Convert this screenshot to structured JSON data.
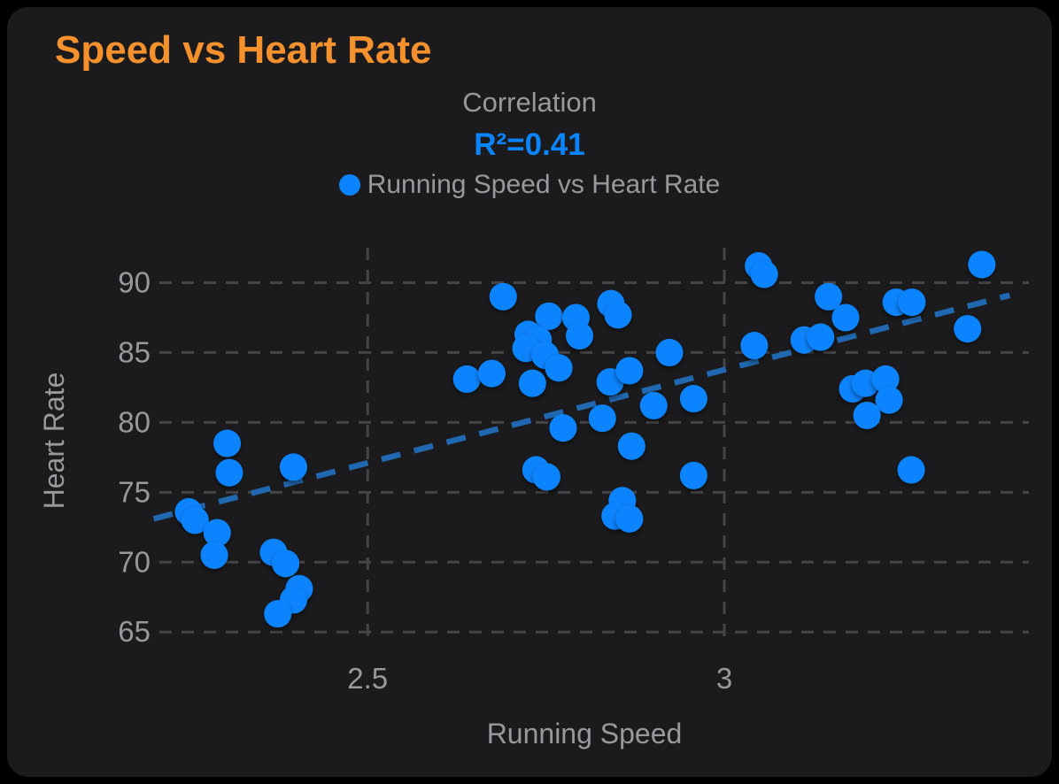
{
  "window": {
    "background": "#000000",
    "card_background": "#1b1b1d"
  },
  "header": {
    "title": "Speed vs Heart Rate",
    "subtitle": "Correlation",
    "r_squared": "R²=0.41",
    "legend": {
      "label": "Running Speed vs Heart Rate",
      "marker": "circle",
      "marker_color": "#0a84ff"
    }
  },
  "colors": {
    "title": "#f5912d",
    "subtitle_text": "#98989d",
    "r_squared_text": "#0a84ff",
    "legend_text": "#98989d",
    "dot": "#0a84ff",
    "trendline": "#2068b0",
    "grid": "#454548",
    "tick_text": "#98989d"
  },
  "chart_data": {
    "type": "scatter",
    "title": "Correlation",
    "annotation": "R²=0.41",
    "xlabel": "Running Speed",
    "ylabel": "Heart Rate",
    "x_ticks": [
      2.5,
      3
    ],
    "x_tick_labels": [
      "2.5",
      "3"
    ],
    "y_ticks": [
      90,
      85,
      80,
      75,
      70,
      65
    ],
    "xlim": [
      2.208,
      3.427
    ],
    "ylim": [
      64,
      92.5
    ],
    "grid": true,
    "legend_position": "top-center",
    "series": [
      {
        "name": "Running Speed vs Heart Rate",
        "color": "#0a84ff",
        "points": [
          [
            2.249,
            73.6
          ],
          [
            2.258,
            73.0
          ],
          [
            2.303,
            78.5
          ],
          [
            2.306,
            76.4
          ],
          [
            2.289,
            72.1
          ],
          [
            2.285,
            70.5
          ],
          [
            2.396,
            76.8
          ],
          [
            2.368,
            70.7
          ],
          [
            2.385,
            69.9
          ],
          [
            2.404,
            68.1
          ],
          [
            2.396,
            67.3
          ],
          [
            2.374,
            66.3
          ],
          [
            2.69,
            89.0
          ],
          [
            2.754,
            87.6
          ],
          [
            2.792,
            87.5
          ],
          [
            2.841,
            88.5
          ],
          [
            2.851,
            87.7
          ],
          [
            2.797,
            86.2
          ],
          [
            2.725,
            86.3
          ],
          [
            2.739,
            85.9
          ],
          [
            2.722,
            85.3
          ],
          [
            2.749,
            84.8
          ],
          [
            2.768,
            83.9
          ],
          [
            2.639,
            83.1
          ],
          [
            2.674,
            83.5
          ],
          [
            2.731,
            82.8
          ],
          [
            2.84,
            82.9
          ],
          [
            2.867,
            83.7
          ],
          [
            2.923,
            85.0
          ],
          [
            2.901,
            81.2
          ],
          [
            2.957,
            81.7
          ],
          [
            2.829,
            80.3
          ],
          [
            2.774,
            79.6
          ],
          [
            2.87,
            78.3
          ],
          [
            2.736,
            76.6
          ],
          [
            2.751,
            76.1
          ],
          [
            2.957,
            76.2
          ],
          [
            2.857,
            74.4
          ],
          [
            2.847,
            73.3
          ],
          [
            2.867,
            73.1
          ],
          [
            3.048,
            91.2
          ],
          [
            3.056,
            90.6
          ],
          [
            3.361,
            91.3
          ],
          [
            3.146,
            89.0
          ],
          [
            3.241,
            88.6
          ],
          [
            3.263,
            88.6
          ],
          [
            3.17,
            87.5
          ],
          [
            3.341,
            86.7
          ],
          [
            3.042,
            85.5
          ],
          [
            3.112,
            85.9
          ],
          [
            3.135,
            86.1
          ],
          [
            3.18,
            82.4
          ],
          [
            3.198,
            82.8
          ],
          [
            3.226,
            83.1
          ],
          [
            3.231,
            81.6
          ],
          [
            3.2,
            80.5
          ],
          [
            3.262,
            76.6
          ]
        ]
      }
    ],
    "trendline": {
      "style": "dashed",
      "x1": 2.2,
      "y1": 73.1,
      "x2": 3.4,
      "y2": 89.1
    }
  }
}
